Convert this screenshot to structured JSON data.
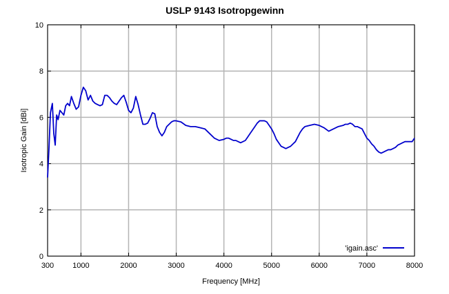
{
  "chart_data": {
    "type": "line",
    "title": "USLP 9143 Isotropgewinn",
    "xlabel": "Frequency [MHz]",
    "ylabel": "Isotropic Gain [dBi]",
    "xlim": [
      300,
      8000
    ],
    "ylim": [
      0,
      10
    ],
    "xticks": [
      300,
      1000,
      2000,
      3000,
      4000,
      5000,
      6000,
      7000,
      8000
    ],
    "xtick_labels": [
      "300",
      "1000",
      "2000",
      "3000",
      "4000",
      "5000",
      "6000",
      "7000",
      "8000"
    ],
    "yticks": [
      0,
      2,
      4,
      6,
      8,
      10
    ],
    "ytick_labels": [
      "0",
      "2",
      "4",
      "6",
      "8",
      "10"
    ],
    "grid": true,
    "legend_position": "bottom-right",
    "colors": {
      "series": "#0000cc",
      "grid": "#b4b4b4",
      "axis": "#000000"
    },
    "series": [
      {
        "name": "'igain.asc'",
        "x": [
          300,
          330,
          360,
          400,
          430,
          460,
          490,
          520,
          560,
          600,
          640,
          680,
          720,
          760,
          800,
          850,
          900,
          950,
          1000,
          1050,
          1100,
          1150,
          1200,
          1250,
          1300,
          1350,
          1400,
          1450,
          1500,
          1550,
          1600,
          1650,
          1700,
          1750,
          1800,
          1850,
          1900,
          1950,
          2000,
          2050,
          2100,
          2150,
          2200,
          2250,
          2300,
          2350,
          2400,
          2450,
          2500,
          2550,
          2600,
          2650,
          2700,
          2750,
          2800,
          2850,
          2900,
          2950,
          3000,
          3100,
          3200,
          3300,
          3400,
          3500,
          3600,
          3700,
          3800,
          3900,
          4000,
          4050,
          4100,
          4150,
          4200,
          4250,
          4300,
          4350,
          4400,
          4450,
          4500,
          4550,
          4600,
          4650,
          4700,
          4750,
          4800,
          4850,
          4900,
          4950,
          5000,
          5050,
          5100,
          5150,
          5200,
          5250,
          5300,
          5350,
          5400,
          5450,
          5500,
          5550,
          5600,
          5650,
          5700,
          5800,
          5900,
          6000,
          6100,
          6200,
          6300,
          6400,
          6500,
          6550,
          6600,
          6650,
          6700,
          6750,
          6800,
          6850,
          6900,
          6950,
          7000,
          7050,
          7100,
          7150,
          7200,
          7250,
          7300,
          7350,
          7400,
          7450,
          7500,
          7550,
          7600,
          7650,
          7700,
          7750,
          7800,
          7850,
          7900,
          7950,
          8000
        ],
        "y": [
          3.4,
          4.7,
          6.2,
          6.6,
          5.3,
          4.8,
          6.1,
          5.9,
          6.3,
          6.2,
          6.1,
          6.5,
          6.6,
          6.5,
          6.9,
          6.6,
          6.35,
          6.45,
          6.95,
          7.3,
          7.15,
          6.75,
          6.95,
          6.7,
          6.6,
          6.55,
          6.5,
          6.55,
          6.95,
          6.95,
          6.85,
          6.7,
          6.6,
          6.55,
          6.7,
          6.85,
          6.95,
          6.65,
          6.3,
          6.2,
          6.4,
          6.9,
          6.55,
          6.1,
          5.7,
          5.7,
          5.75,
          5.95,
          6.2,
          6.15,
          5.6,
          5.35,
          5.2,
          5.35,
          5.6,
          5.7,
          5.8,
          5.85,
          5.85,
          5.8,
          5.65,
          5.6,
          5.6,
          5.55,
          5.5,
          5.3,
          5.1,
          5.0,
          5.05,
          5.1,
          5.1,
          5.05,
          5.0,
          5.0,
          4.95,
          4.9,
          4.95,
          5.0,
          5.15,
          5.3,
          5.45,
          5.6,
          5.75,
          5.85,
          5.85,
          5.85,
          5.8,
          5.65,
          5.5,
          5.3,
          5.05,
          4.9,
          4.75,
          4.7,
          4.65,
          4.7,
          4.75,
          4.85,
          4.95,
          5.15,
          5.35,
          5.5,
          5.6,
          5.65,
          5.7,
          5.65,
          5.55,
          5.4,
          5.5,
          5.6,
          5.65,
          5.7,
          5.7,
          5.75,
          5.7,
          5.6,
          5.6,
          5.55,
          5.5,
          5.3,
          5.1,
          5.0,
          4.85,
          4.75,
          4.6,
          4.5,
          4.45,
          4.5,
          4.55,
          4.6,
          4.6,
          4.65,
          4.7,
          4.8,
          4.85,
          4.9,
          4.95,
          4.95,
          4.95,
          4.95,
          5.1
        ]
      }
    ]
  }
}
